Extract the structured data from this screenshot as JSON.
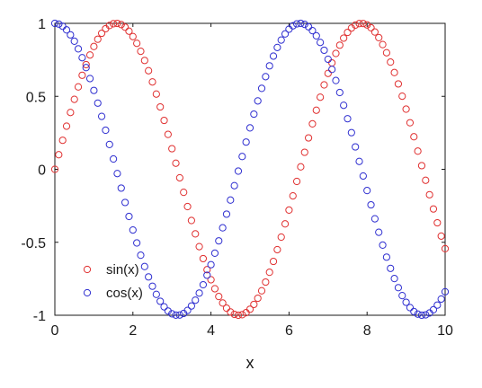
{
  "chart_data": {
    "type": "scatter",
    "title": "",
    "xlabel": "x",
    "ylabel": "",
    "xlim": [
      0,
      10
    ],
    "ylim": [
      -1,
      1
    ],
    "grid": false,
    "legend_position": "bottom-left",
    "x_ticks": [
      "0",
      "2",
      "4",
      "6",
      "8",
      "10"
    ],
    "y_ticks": [
      "1",
      "0.5",
      "0",
      "-0.5",
      "-1"
    ],
    "x": [
      0.0,
      0.1,
      0.2,
      0.3,
      0.4,
      0.5,
      0.6,
      0.7,
      0.8,
      0.9,
      1.0,
      1.1,
      1.2,
      1.3,
      1.4,
      1.5,
      1.6,
      1.7,
      1.8,
      1.9,
      2.0,
      2.1,
      2.2,
      2.3,
      2.4,
      2.5,
      2.6,
      2.7,
      2.8,
      2.9,
      3.0,
      3.1,
      3.2,
      3.3,
      3.4,
      3.5,
      3.6,
      3.7,
      3.8,
      3.9,
      4.0,
      4.1,
      4.2,
      4.3,
      4.4,
      4.5,
      4.6,
      4.7,
      4.8,
      4.9,
      5.0,
      5.1,
      5.2,
      5.3,
      5.4,
      5.5,
      5.6,
      5.7,
      5.8,
      5.9,
      6.0,
      6.1,
      6.2,
      6.3,
      6.4,
      6.5,
      6.6,
      6.7,
      6.8,
      6.9,
      7.0,
      7.1,
      7.2,
      7.3,
      7.4,
      7.5,
      7.6,
      7.7,
      7.8,
      7.9,
      8.0,
      8.1,
      8.2,
      8.3,
      8.4,
      8.5,
      8.6,
      8.7,
      8.8,
      8.9,
      9.0,
      9.1,
      9.2,
      9.3,
      9.4,
      9.5,
      9.6,
      9.7,
      9.8,
      9.9,
      10.0
    ],
    "series": [
      {
        "name": "sin(x)",
        "color": "#e03030",
        "marker": "open-circle",
        "values": [
          0.0,
          0.0998,
          0.1987,
          0.2955,
          0.3894,
          0.4794,
          0.5646,
          0.6442,
          0.7174,
          0.7833,
          0.8415,
          0.8912,
          0.932,
          0.9636,
          0.9854,
          0.9975,
          0.9996,
          0.9917,
          0.9738,
          0.9463,
          0.9093,
          0.8632,
          0.8085,
          0.7457,
          0.6755,
          0.5985,
          0.5155,
          0.4274,
          0.335,
          0.2392,
          0.1411,
          0.0416,
          -0.0584,
          -0.1577,
          -0.2555,
          -0.3508,
          -0.4425,
          -0.5298,
          -0.6119,
          -0.6878,
          -0.7568,
          -0.8183,
          -0.8716,
          -0.9162,
          -0.9516,
          -0.9775,
          -0.9937,
          -0.9999,
          -0.9962,
          -0.9825,
          -0.9589,
          -0.9258,
          -0.8835,
          -0.8323,
          -0.7728,
          -0.7055,
          -0.6313,
          -0.5507,
          -0.4646,
          -0.3739,
          -0.2794,
          -0.1822,
          -0.0831,
          0.0168,
          0.1165,
          0.2151,
          0.3115,
          0.4048,
          0.494,
          0.5784,
          0.657,
          0.729,
          0.7937,
          0.8504,
          0.8987,
          0.938,
          0.9679,
          0.9882,
          0.9985,
          0.9989,
          0.9894,
          0.9699,
          0.9407,
          0.9022,
          0.8546,
          0.7985,
          0.7344,
          0.663,
          0.5849,
          0.501,
          0.4121,
          0.319,
          0.2229,
          0.1245,
          0.025,
          -0.0752,
          -0.1743,
          -0.2718,
          -0.3665,
          -0.4575,
          -0.544
        ]
      },
      {
        "name": "cos(x)",
        "color": "#2f2fd0",
        "marker": "open-circle",
        "values": [
          1.0,
          0.995,
          0.9801,
          0.9553,
          0.9211,
          0.8776,
          0.8253,
          0.7648,
          0.6967,
          0.6216,
          0.5403,
          0.4536,
          0.3624,
          0.2675,
          0.17,
          0.0707,
          -0.0292,
          -0.1288,
          -0.2272,
          -0.3233,
          -0.4161,
          -0.5048,
          -0.5885,
          -0.6663,
          -0.7374,
          -0.8011,
          -0.8569,
          -0.9041,
          -0.9422,
          -0.971,
          -0.99,
          -0.9991,
          -0.9983,
          -0.9875,
          -0.9668,
          -0.9365,
          -0.8968,
          -0.8481,
          -0.791,
          -0.7259,
          -0.6536,
          -0.5748,
          -0.4903,
          -0.4008,
          -0.3073,
          -0.2108,
          -0.1122,
          -0.0124,
          0.0875,
          0.1865,
          0.2837,
          0.378,
          0.4685,
          0.5544,
          0.6347,
          0.7087,
          0.7756,
          0.8347,
          0.8855,
          0.9275,
          0.9602,
          0.9833,
          0.9965,
          0.9999,
          0.9932,
          0.9766,
          0.9502,
          0.9144,
          0.8694,
          0.8157,
          0.7539,
          0.6845,
          0.6084,
          0.5261,
          0.4385,
          0.3466,
          0.2513,
          0.1534,
          0.054,
          -0.046,
          -0.1455,
          -0.2435,
          -0.3392,
          -0.4314,
          -0.5193,
          -0.602,
          -0.6787,
          -0.7486,
          -0.811,
          -0.8654,
          -0.9111,
          -0.9477,
          -0.9748,
          -0.9922,
          -0.9997,
          -0.9972,
          -0.9847,
          -0.9624,
          -0.9304,
          -0.889,
          -0.8391
        ]
      }
    ]
  }
}
